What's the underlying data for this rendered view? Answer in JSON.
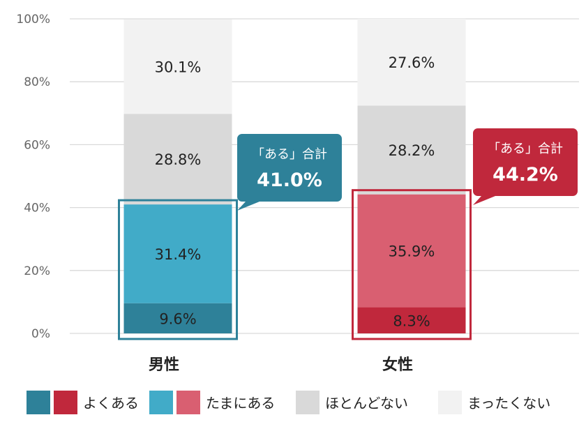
{
  "chart_data": {
    "type": "bar",
    "stacked": true,
    "ylim": [
      0,
      100
    ],
    "yticks": [
      "0%",
      "20%",
      "40%",
      "60%",
      "80%",
      "100%"
    ],
    "grid": true,
    "categories": [
      "男性",
      "女性"
    ],
    "series": [
      {
        "name": "よくある",
        "values": [
          9.6,
          8.3
        ],
        "labels": [
          "9.6%",
          "8.3%"
        ],
        "colors": [
          "#2e8199",
          "#c0283c"
        ]
      },
      {
        "name": "たまにある",
        "values": [
          31.4,
          35.9
        ],
        "labels": [
          "31.4%",
          "35.9%"
        ],
        "colors": [
          "#41abc8",
          "#d95f71"
        ]
      },
      {
        "name": "ほとんどない",
        "values": [
          28.8,
          28.2
        ],
        "labels": [
          "28.8%",
          "28.2%"
        ],
        "colors": [
          "#d9d9d9",
          "#d9d9d9"
        ]
      },
      {
        "name": "まったくない",
        "values": [
          30.1,
          27.6
        ],
        "labels": [
          "30.1%",
          "27.6%"
        ],
        "colors": [
          "#f2f2f2",
          "#f2f2f2"
        ]
      }
    ],
    "callouts": [
      {
        "title": "「ある」合計",
        "value": "41.0%",
        "total": 41.0,
        "color": "#2e8199"
      },
      {
        "title": "「ある」合計",
        "value": "44.2%",
        "total": 44.2,
        "color": "#c0283c"
      }
    ],
    "legend": {
      "position": "bottom",
      "items": [
        {
          "label": "よくある",
          "colors": [
            "#2e8199",
            "#c0283c"
          ]
        },
        {
          "label": "たまにある",
          "colors": [
            "#41abc8",
            "#d95f71"
          ]
        },
        {
          "label": "ほとんどない",
          "colors": [
            "#d9d9d9"
          ]
        },
        {
          "label": "まったくない",
          "colors": [
            "#f2f2f2"
          ]
        }
      ]
    }
  }
}
